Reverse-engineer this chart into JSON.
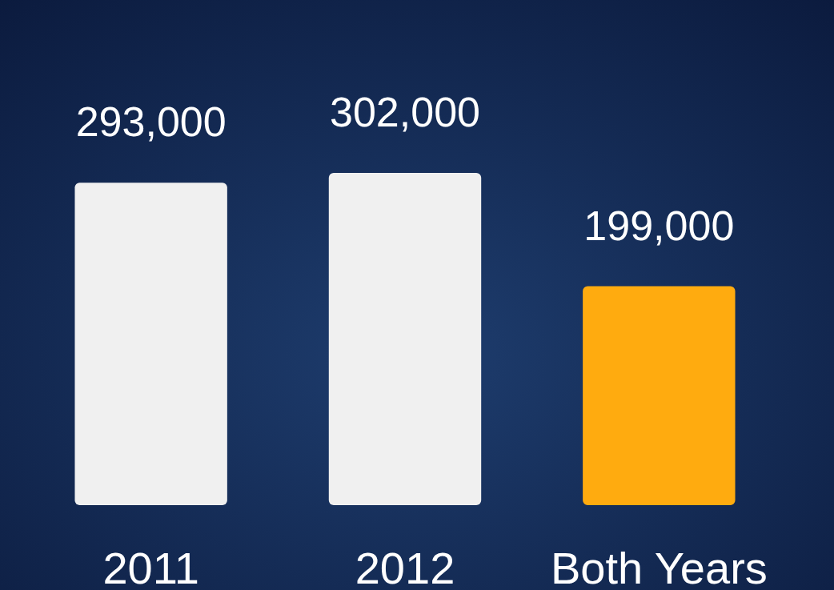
{
  "chart_data": {
    "type": "bar",
    "categories": [
      "2011",
      "2012",
      "Both Years"
    ],
    "values": [
      293000,
      302000,
      199000
    ],
    "colors": [
      "#f0f0f0",
      "#f0f0f0",
      "#ffab0f"
    ],
    "value_labels": [
      "293,000",
      "302,000",
      "199,000"
    ]
  }
}
